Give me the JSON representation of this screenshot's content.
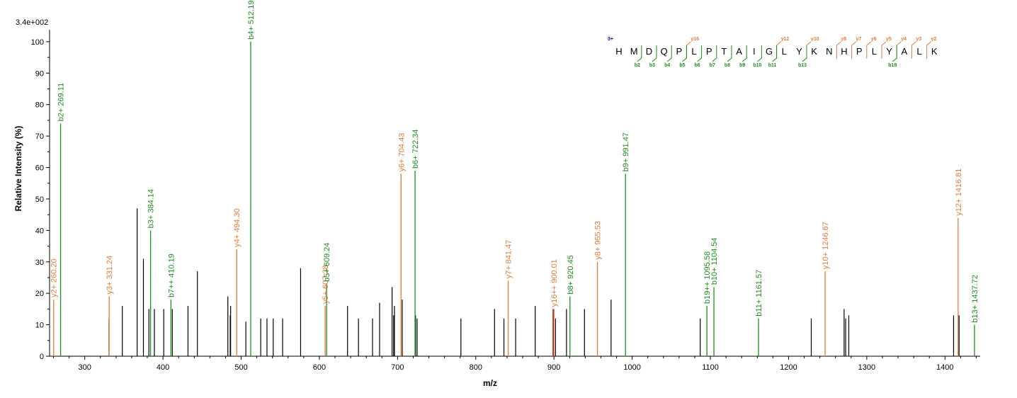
{
  "chart_data": {
    "type": "bar",
    "title": "",
    "max_intensity": "3.4e+002",
    "xlabel": "m/z",
    "ylabel": "Relative   Intensity (%)",
    "xlim": [
      255,
      1445
    ],
    "ylim": [
      0,
      102
    ],
    "x_ticks": [
      300,
      400,
      500,
      600,
      700,
      800,
      900,
      1000,
      1100,
      1200,
      1300,
      1400
    ],
    "y_ticks": [
      0,
      10,
      20,
      30,
      40,
      50,
      60,
      70,
      80,
      90,
      100
    ],
    "colors": {
      "b": "#1e8c1e",
      "y": "#e07b39",
      "unannotated": "#000000",
      "precursor": "#8b0000",
      "charge": "#0000aa"
    },
    "annotated_peaks": [
      {
        "mz": 260.2,
        "intensity": 18,
        "ion": "y",
        "label": "y2+ 260.20"
      },
      {
        "mz": 269.11,
        "intensity": 74,
        "ion": "b",
        "label": "b2+ 269.11"
      },
      {
        "mz": 331.24,
        "intensity": 19,
        "ion": "y",
        "label": "y3+ 331.24"
      },
      {
        "mz": 384.14,
        "intensity": 40,
        "ion": "b",
        "label": "b3+ 384.14"
      },
      {
        "mz": 410.19,
        "intensity": 18,
        "ion": "b",
        "label": "b7++ 410.19"
      },
      {
        "mz": 494.3,
        "intensity": 34,
        "ion": "y",
        "label": "y4+ 494.30"
      },
      {
        "mz": 512.19,
        "intensity": 100,
        "ion": "b",
        "label": "b4+ 512.19"
      },
      {
        "mz": 607.38,
        "intensity": 16,
        "ion": "y",
        "label": "y5+ 607.38"
      },
      {
        "mz": 609.24,
        "intensity": 23,
        "ion": "b",
        "label": "b5+ 609.24"
      },
      {
        "mz": 704.43,
        "intensity": 58,
        "ion": "y",
        "label": "y6+ 704.43"
      },
      {
        "mz": 722.34,
        "intensity": 59,
        "ion": "b",
        "label": "b6+ 722.34"
      },
      {
        "mz": 841.47,
        "intensity": 24,
        "ion": "y",
        "label": "y7+ 841.47"
      },
      {
        "mz": 900.01,
        "intensity": 15,
        "ion": "y",
        "label": "y16++ 900.01"
      },
      {
        "mz": 920.45,
        "intensity": 19,
        "ion": "b",
        "label": "b8+ 920.45"
      },
      {
        "mz": 955.53,
        "intensity": 30,
        "ion": "y",
        "label": "y8+ 955.53"
      },
      {
        "mz": 991.47,
        "intensity": 58,
        "ion": "b",
        "label": "b9+ 991.47"
      },
      {
        "mz": 1095.58,
        "intensity": 16,
        "ion": "b",
        "label": "b19++ 1095.58"
      },
      {
        "mz": 1104.54,
        "intensity": 22,
        "ion": "b",
        "label": "b10+ 1104.54"
      },
      {
        "mz": 1161.57,
        "intensity": 12,
        "ion": "b",
        "label": "b11+ 1161.57"
      },
      {
        "mz": 1246.67,
        "intensity": 27,
        "ion": "y",
        "label": "y10+ 1246.67"
      },
      {
        "mz": 1416.81,
        "intensity": 44,
        "ion": "y",
        "label": "y12+ 1416.81"
      },
      {
        "mz": 1437.72,
        "intensity": 10,
        "ion": "b",
        "label": "b13+ 1437.72"
      }
    ],
    "unannotated_peaks": [
      {
        "mz": 331,
        "intensity": 12
      },
      {
        "mz": 348,
        "intensity": 16
      },
      {
        "mz": 367,
        "intensity": 47
      },
      {
        "mz": 375,
        "intensity": 31
      },
      {
        "mz": 382,
        "intensity": 15
      },
      {
        "mz": 389,
        "intensity": 15
      },
      {
        "mz": 401,
        "intensity": 15
      },
      {
        "mz": 412,
        "intensity": 15
      },
      {
        "mz": 432,
        "intensity": 16
      },
      {
        "mz": 444,
        "intensity": 27
      },
      {
        "mz": 483,
        "intensity": 19
      },
      {
        "mz": 486,
        "intensity": 13
      },
      {
        "mz": 486.5,
        "intensity": 16
      },
      {
        "mz": 506,
        "intensity": 11
      },
      {
        "mz": 525,
        "intensity": 12
      },
      {
        "mz": 533,
        "intensity": 12
      },
      {
        "mz": 541,
        "intensity": 12
      },
      {
        "mz": 553,
        "intensity": 12
      },
      {
        "mz": 576,
        "intensity": 28
      },
      {
        "mz": 636,
        "intensity": 16
      },
      {
        "mz": 650,
        "intensity": 12
      },
      {
        "mz": 668,
        "intensity": 12
      },
      {
        "mz": 677,
        "intensity": 17
      },
      {
        "mz": 693,
        "intensity": 22
      },
      {
        "mz": 695,
        "intensity": 13
      },
      {
        "mz": 696,
        "intensity": 16
      },
      {
        "mz": 706,
        "intensity": 18
      },
      {
        "mz": 723,
        "intensity": 13
      },
      {
        "mz": 725,
        "intensity": 12
      },
      {
        "mz": 781,
        "intensity": 12
      },
      {
        "mz": 824,
        "intensity": 15
      },
      {
        "mz": 836,
        "intensity": 12
      },
      {
        "mz": 851,
        "intensity": 12
      },
      {
        "mz": 876,
        "intensity": 16
      },
      {
        "mz": 902,
        "intensity": 12
      },
      {
        "mz": 916,
        "intensity": 15
      },
      {
        "mz": 939,
        "intensity": 15
      },
      {
        "mz": 973,
        "intensity": 18
      },
      {
        "mz": 1087,
        "intensity": 12
      },
      {
        "mz": 1229,
        "intensity": 12
      },
      {
        "mz": 1271,
        "intensity": 15
      },
      {
        "mz": 1273,
        "intensity": 12
      },
      {
        "mz": 1277,
        "intensity": 13
      },
      {
        "mz": 1411,
        "intensity": 13
      },
      {
        "mz": 1418,
        "intensity": 13
      }
    ],
    "precursor_peaks": [
      {
        "mz": 899,
        "intensity": 15
      }
    ]
  },
  "sequence": {
    "charge": "3+",
    "residues": [
      "H",
      "M",
      "D",
      "Q",
      "P",
      "L",
      "P",
      "T",
      "A",
      "I",
      "G",
      "L",
      "Y",
      "K",
      "N",
      "H",
      "P",
      "L",
      "Y",
      "A",
      "L",
      "K"
    ],
    "y_ions": [
      {
        "after": 5,
        "label": "y16"
      },
      {
        "after": 11,
        "label": "y12"
      },
      {
        "after": 13,
        "label": "y10"
      },
      {
        "after": 15,
        "label": "y8"
      },
      {
        "after": 16,
        "label": "y7"
      },
      {
        "after": 17,
        "label": "y6"
      },
      {
        "after": 18,
        "label": "y5"
      },
      {
        "after": 19,
        "label": "y4"
      },
      {
        "after": 20,
        "label": "y3"
      },
      {
        "after": 21,
        "label": "y2"
      }
    ],
    "b_ions": [
      {
        "after": 2,
        "label": "b2"
      },
      {
        "after": 3,
        "label": "b3"
      },
      {
        "after": 4,
        "label": "b4"
      },
      {
        "after": 5,
        "label": "b5"
      },
      {
        "after": 6,
        "label": "b6"
      },
      {
        "after": 7,
        "label": "b7"
      },
      {
        "after": 8,
        "label": "b8"
      },
      {
        "after": 9,
        "label": "b9"
      },
      {
        "after": 10,
        "label": "b10"
      },
      {
        "after": 11,
        "label": "b11"
      },
      {
        "after": 13,
        "label": "b13"
      },
      {
        "after": 19,
        "label": "b19"
      }
    ]
  }
}
